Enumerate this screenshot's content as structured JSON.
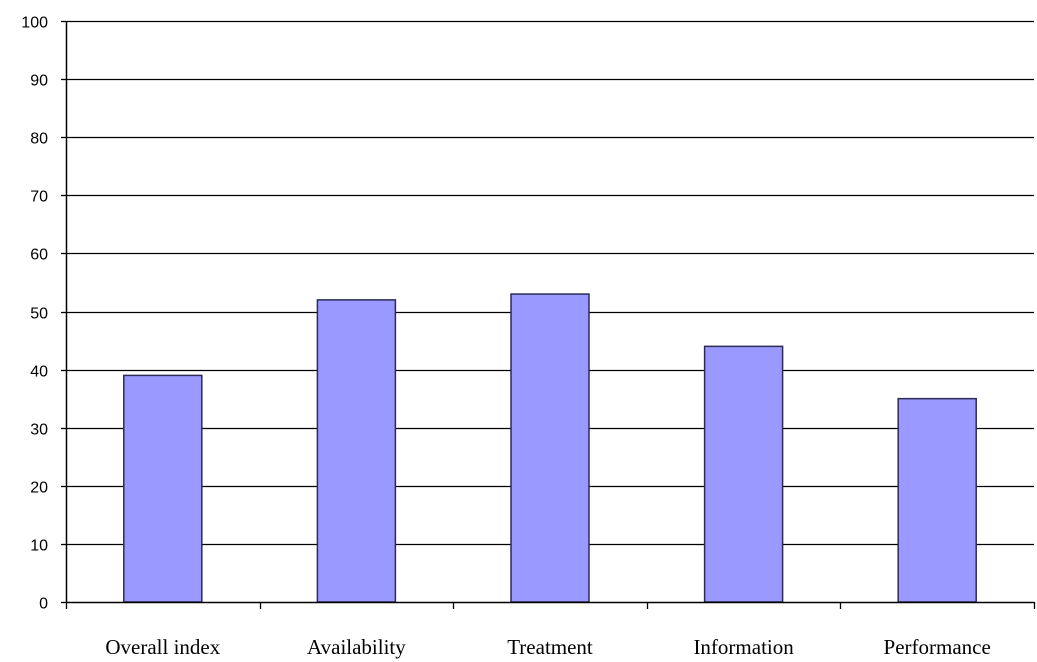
{
  "chart_data": {
    "type": "bar",
    "categories": [
      "Overall index",
      "Availability",
      "Treatment",
      "Information",
      "Performance"
    ],
    "values": [
      39,
      52,
      53,
      44,
      35
    ],
    "ylim": [
      0,
      100
    ],
    "yticks": [
      0,
      10,
      20,
      30,
      40,
      50,
      60,
      70,
      80,
      90,
      100
    ],
    "grid": true,
    "legend": "none",
    "colors": {
      "bar_fill": "#9999ff",
      "bar_stroke": "#2b2b55",
      "grid": "#000000",
      "axis": "#000000"
    }
  }
}
